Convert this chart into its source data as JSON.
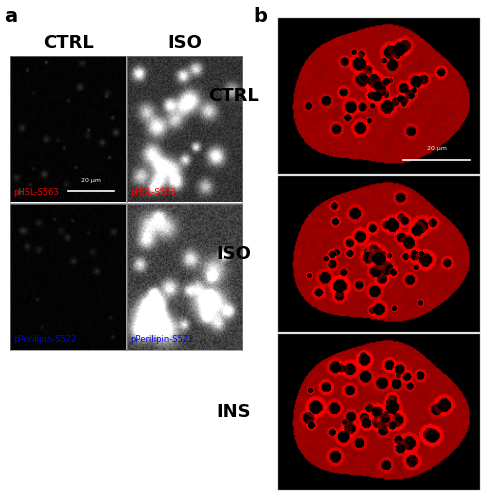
{
  "fig_label_a": "a",
  "fig_label_b": "b",
  "col_labels_a": [
    "CTRL",
    "ISO"
  ],
  "row_labels_b": [
    "CTRL",
    "ISO",
    "INS"
  ],
  "row_labels_a": [
    [
      "pHSL-S563",
      "pHSL-S563"
    ],
    [
      "pPerilipin-S522",
      "pPerilipin-S522"
    ]
  ],
  "row_labels_a_colors": [
    "red",
    "blue"
  ],
  "scalebar_text": "20 µm",
  "background_color": "#ffffff",
  "label_fontsize": 13,
  "sublabel_fontsize": 6,
  "panel_label_fontsize": 14
}
